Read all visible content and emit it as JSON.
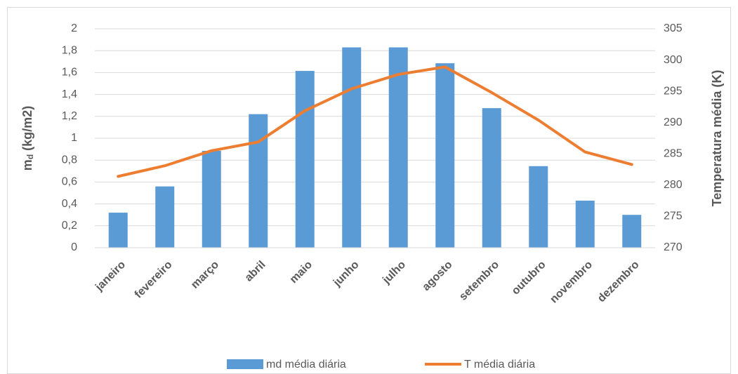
{
  "chart_data": {
    "type": "bar_line",
    "categories": [
      "janeiro",
      "fevereiro",
      "março",
      "abril",
      "maio",
      "junho",
      "julho",
      "agosto",
      "setembro",
      "outubro",
      "novembro",
      "dezembro"
    ],
    "y_label": [
      "m",
      "d",
      " (kg/m2)"
    ],
    "y2_label": "Temperatura média (K)",
    "ylim": [
      0,
      2
    ],
    "yticks": [
      0,
      {
        "value": 0.2,
        "label": "0,2"
      },
      {
        "value": 0.4,
        "label": "0,4"
      },
      {
        "value": 0.6,
        "label": "0,6"
      },
      {
        "value": 0.8,
        "label": "0,8"
      },
      1,
      {
        "value": 1.2,
        "label": "1,2"
      },
      {
        "value": 1.4,
        "label": "1,4"
      },
      {
        "value": 1.6,
        "label": "1,6"
      },
      {
        "value": 1.8,
        "label": "1,8"
      },
      2
    ],
    "y2lim": [
      270,
      305
    ],
    "y2ticks": [
      270,
      275,
      280,
      285,
      290,
      295,
      300,
      305
    ],
    "grid": true,
    "legend": "bottom",
    "series": [
      {
        "name": "md média diária",
        "type": "bar",
        "color": "#5b9bd5",
        "values": [
          0.32,
          0.56,
          0.885,
          1.22,
          1.615,
          1.83,
          1.83,
          1.685,
          1.275,
          0.745,
          0.43,
          0.3
        ]
      },
      {
        "name": "T média diária",
        "type": "line",
        "axis": "y2",
        "color": "#ed7d31",
        "values": [
          281.4,
          283.1,
          285.5,
          286.9,
          291.9,
          295.4,
          297.7,
          298.9,
          294.8,
          290.4,
          285.3,
          283.3
        ]
      }
    ]
  }
}
